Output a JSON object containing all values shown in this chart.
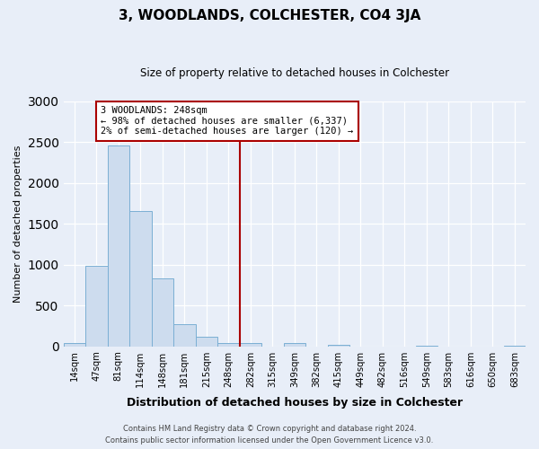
{
  "title": "3, WOODLANDS, COLCHESTER, CO4 3JA",
  "subtitle": "Size of property relative to detached houses in Colchester",
  "xlabel": "Distribution of detached houses by size in Colchester",
  "ylabel": "Number of detached properties",
  "bar_labels": [
    "14sqm",
    "47sqm",
    "81sqm",
    "114sqm",
    "148sqm",
    "181sqm",
    "215sqm",
    "248sqm",
    "282sqm",
    "315sqm",
    "349sqm",
    "382sqm",
    "415sqm",
    "449sqm",
    "482sqm",
    "516sqm",
    "549sqm",
    "583sqm",
    "616sqm",
    "650sqm",
    "683sqm"
  ],
  "bar_values": [
    40,
    990,
    2460,
    1660,
    830,
    270,
    120,
    40,
    40,
    0,
    35,
    0,
    20,
    0,
    0,
    0,
    10,
    0,
    0,
    0,
    5
  ],
  "bar_color": "#cddcee",
  "bar_edge_color": "#7bafd4",
  "vline_x_index": 7,
  "vline_color": "#aa0000",
  "annotation_text": "3 WOODLANDS: 248sqm\n← 98% of detached houses are smaller (6,337)\n2% of semi-detached houses are larger (120) →",
  "annotation_box_facecolor": "#ffffff",
  "annotation_box_edgecolor": "#aa0000",
  "ylim": [
    0,
    3000
  ],
  "yticks": [
    0,
    500,
    1000,
    1500,
    2000,
    2500,
    3000
  ],
  "footer_line1": "Contains HM Land Registry data © Crown copyright and database right 2024.",
  "footer_line2": "Contains public sector information licensed under the Open Government Licence v3.0.",
  "bg_color": "#e8eef8",
  "plot_bg_color": "#e8eef8"
}
